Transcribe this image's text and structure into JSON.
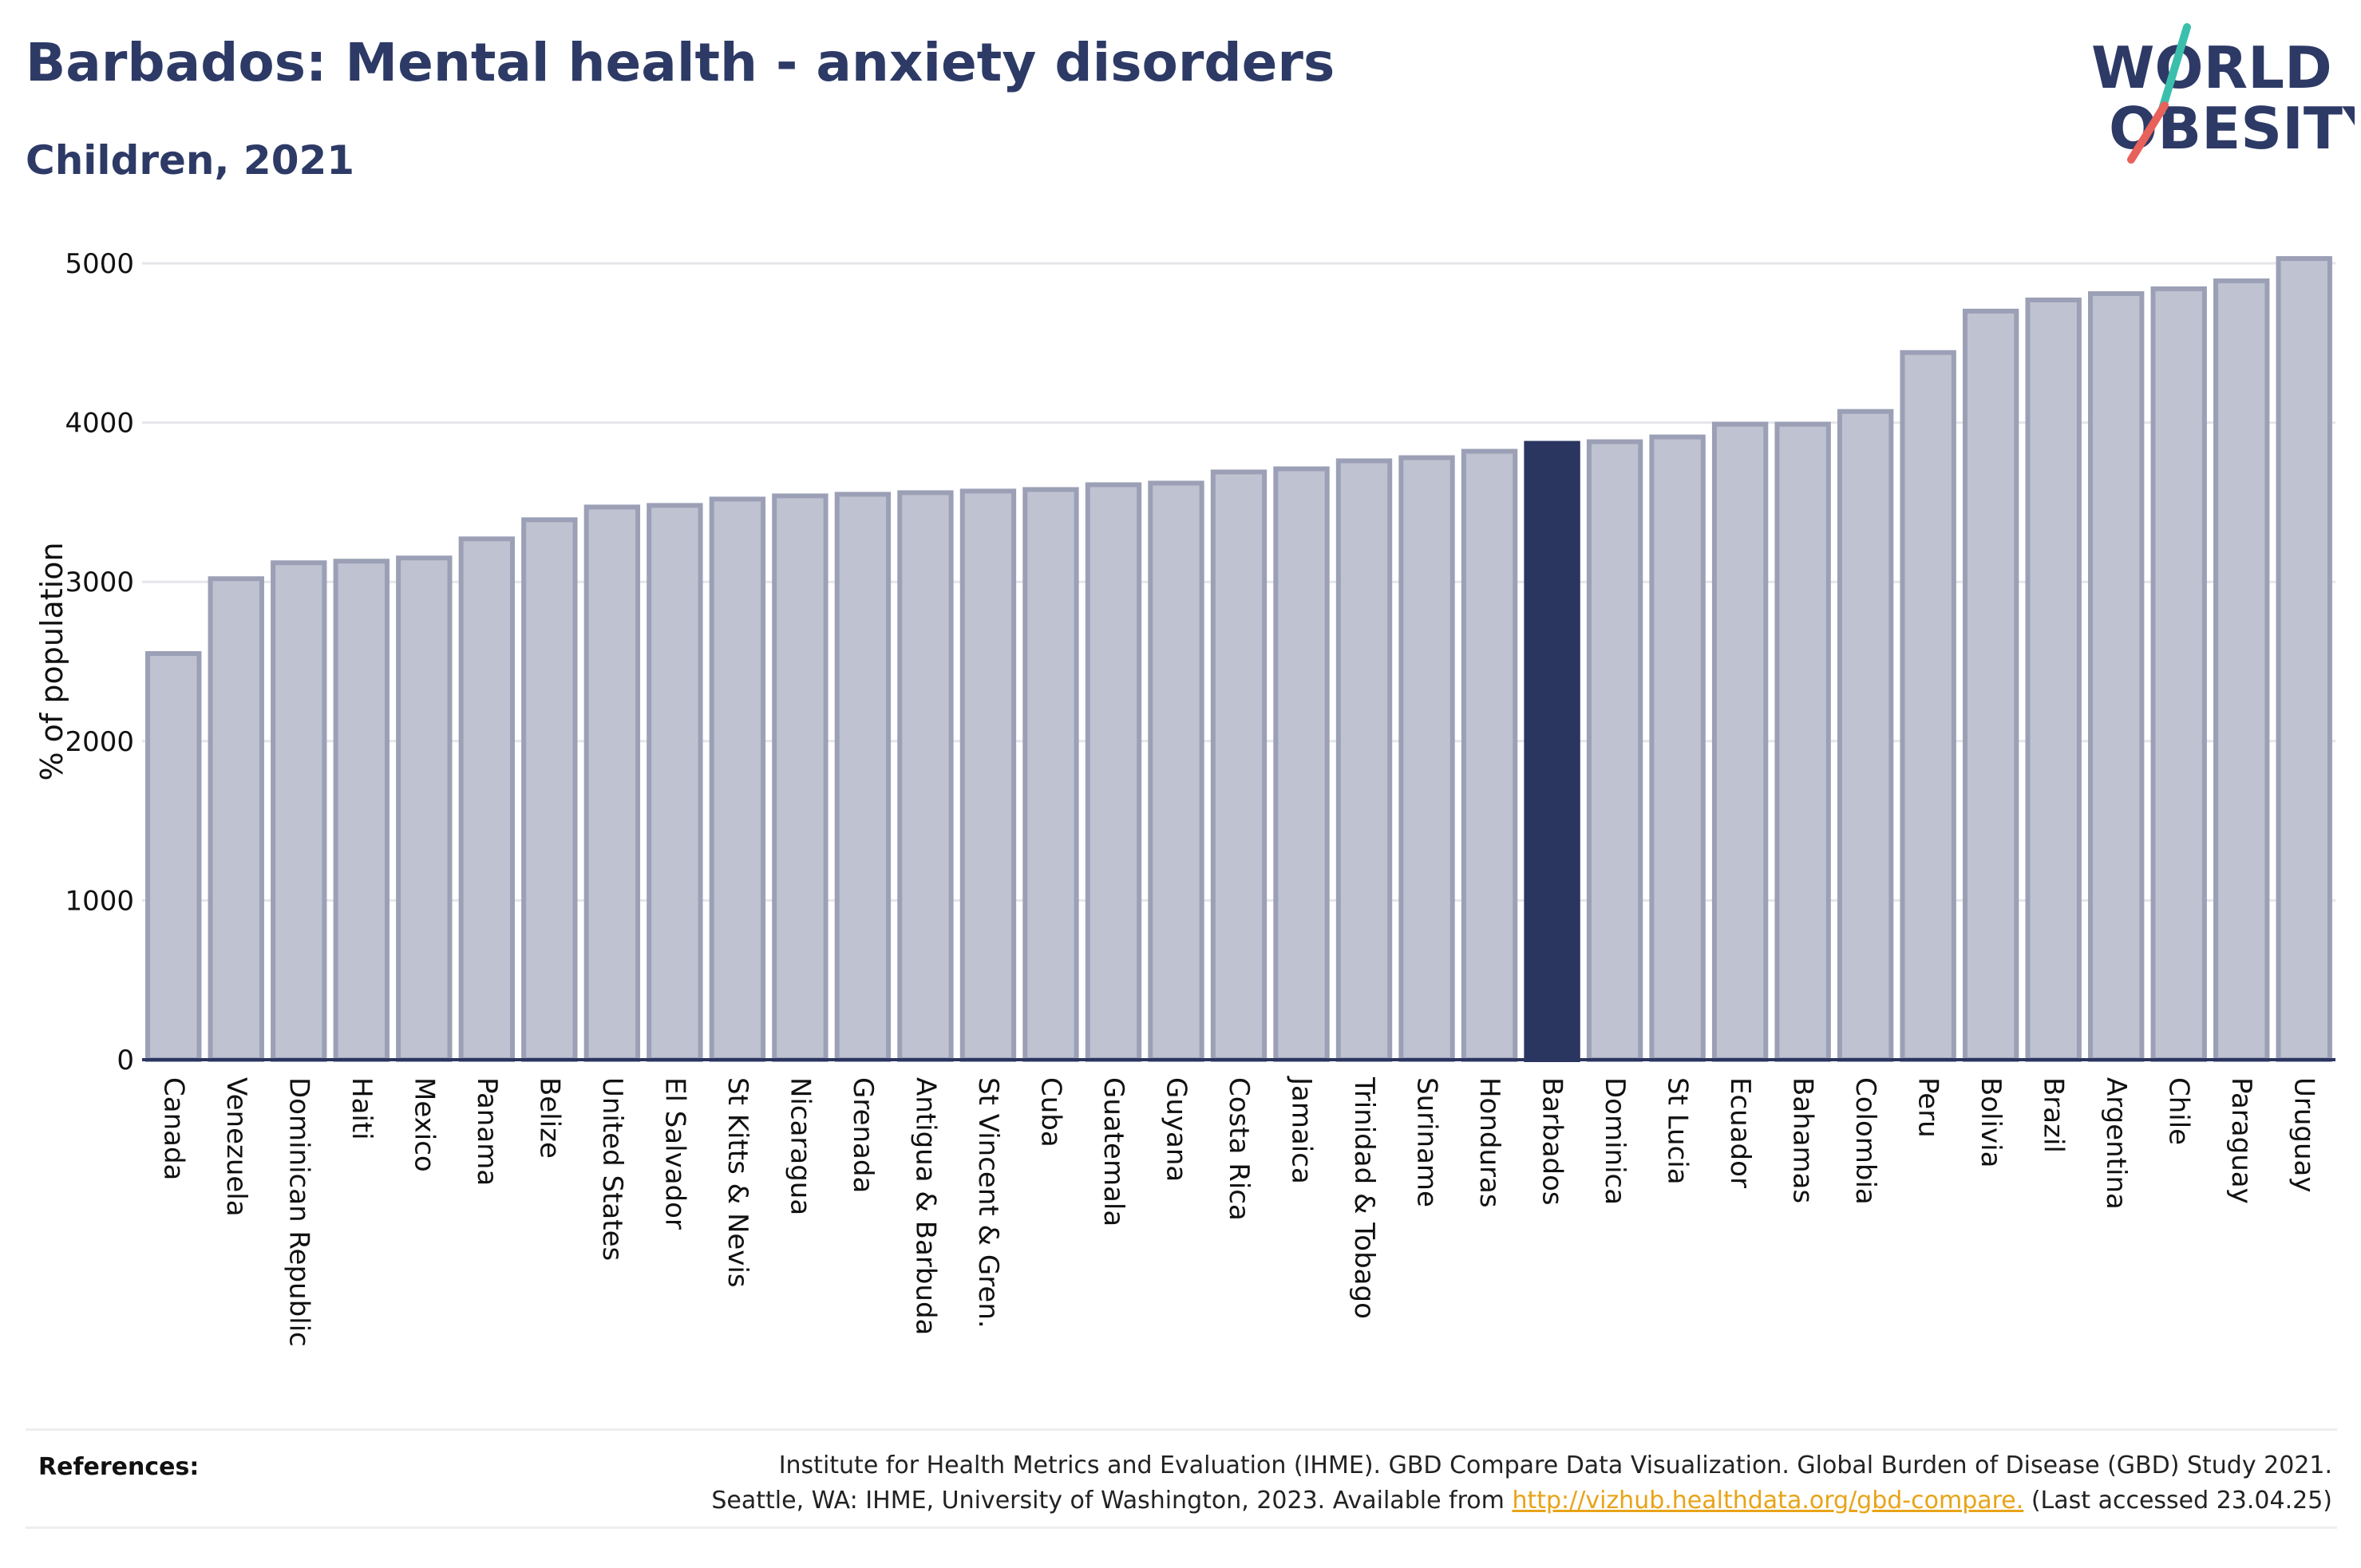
{
  "header": {
    "title": "Barbados: Mental health - anxiety disorders",
    "subtitle": "Children, 2021"
  },
  "logo": {
    "line1": "WORLD",
    "line2": "OBESITY",
    "accent_teal": "#3bbfad",
    "accent_red": "#e8615a"
  },
  "colors": {
    "bar": "#bfc2d0",
    "bar_border": "#9ba0b6",
    "highlight": "#2a3560",
    "axis": "#2b3660"
  },
  "chart_data": {
    "type": "bar",
    "title": "Barbados: Mental health - anxiety disorders",
    "subtitle": "Children, 2021",
    "ylabel": "% of population",
    "xlabel": "",
    "ylim": [
      0,
      5000
    ],
    "yticks": [
      0,
      1000,
      2000,
      3000,
      4000,
      5000
    ],
    "grid": true,
    "highlight": "Barbados",
    "categories": [
      "Canada",
      "Venezuela",
      "Dominican Republic",
      "Haiti",
      "Mexico",
      "Panama",
      "Belize",
      "United States",
      "El Salvador",
      "St Kitts & Nevis",
      "Nicaragua",
      "Grenada",
      "Antigua & Barbuda",
      "St Vincent & Gren.",
      "Cuba",
      "Guatemala",
      "Guyana",
      "Costa Rica",
      "Jamaica",
      "Trinidad & Tobago",
      "Suriname",
      "Honduras",
      "Barbados",
      "Dominica",
      "St Lucia",
      "Ecuador",
      "Bahamas",
      "Colombia",
      "Peru",
      "Bolivia",
      "Brazil",
      "Argentina",
      "Chile",
      "Paraguay",
      "Uruguay"
    ],
    "values": [
      2550,
      3020,
      3120,
      3130,
      3150,
      3270,
      3390,
      3470,
      3480,
      3520,
      3540,
      3550,
      3560,
      3570,
      3580,
      3610,
      3620,
      3690,
      3710,
      3760,
      3780,
      3820,
      3870,
      3880,
      3910,
      3990,
      3990,
      4070,
      4440,
      4700,
      4770,
      4810,
      4840,
      4890,
      5030
    ]
  },
  "footer": {
    "label": "References:",
    "line1": "Institute for Health Metrics and Evaluation (IHME). GBD Compare Data Visualization. Global Burden of Disease (GBD) Study 2021.",
    "line2_prefix": "Seattle, WA: IHME, University of Washington, 2023. Available from",
    "link": "http://vizhub.healthdata.org/gbd-compare.",
    "line2_suffix": "(Last accessed 23.04.25)"
  }
}
